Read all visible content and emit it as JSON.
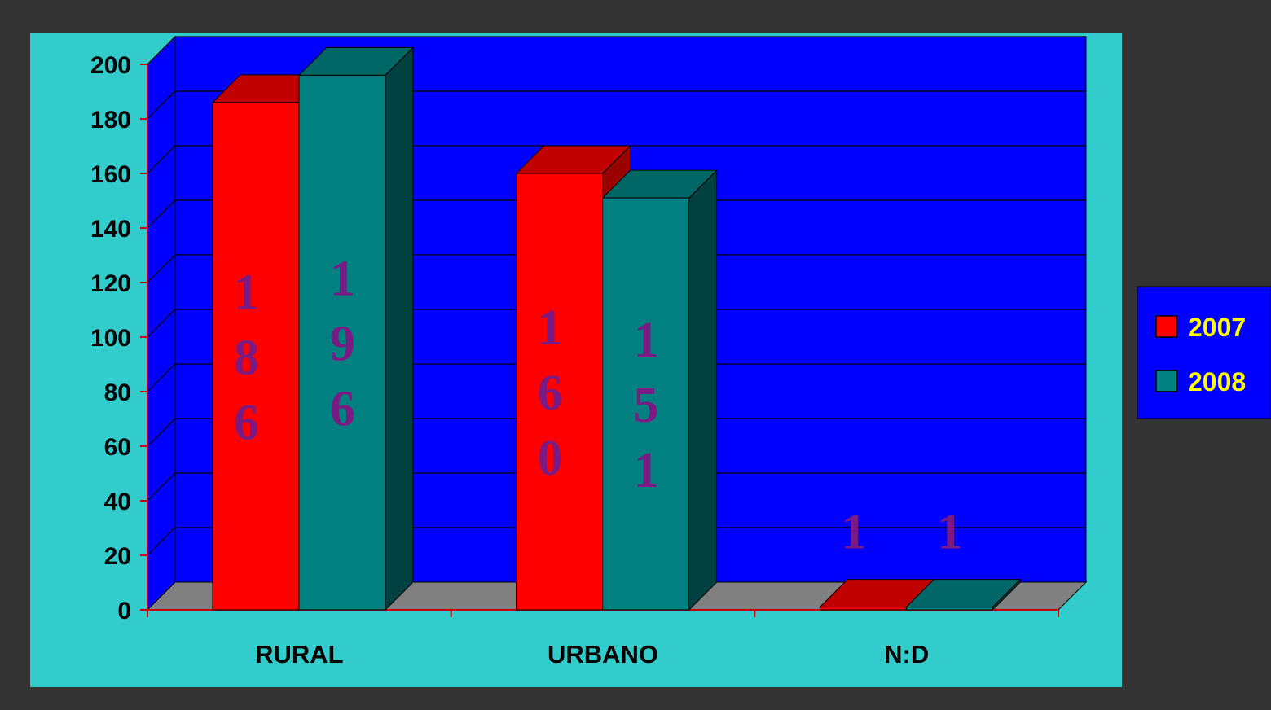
{
  "chart_data": {
    "type": "bar",
    "categories": [
      "RURAL",
      "URBANO",
      "N:D"
    ],
    "series": [
      {
        "name": "2007",
        "values": [
          186,
          160,
          1
        ]
      },
      {
        "name": "2008",
        "values": [
          196,
          151,
          1
        ]
      }
    ],
    "title": "",
    "xlabel": "",
    "ylabel": "",
    "ylim": [
      0,
      200
    ],
    "yticks": [
      "0",
      "20",
      "40",
      "60",
      "80",
      "100",
      "120",
      "140",
      "160",
      "180",
      "200"
    ],
    "grid": true,
    "legend": "right",
    "style_3d": true,
    "colors": {
      "background": "#333333",
      "plot_area": "#33cccc",
      "walls": "#0000ff",
      "floor": "#808080",
      "series": [
        "#ff0000",
        "#008080"
      ],
      "series_top": [
        "#c00000",
        "#006666"
      ],
      "series_side": [
        "#990000",
        "#004040"
      ],
      "data_labels": "#7a1a84",
      "legend_text": "#ffff00",
      "axis_lines": "#cc0000"
    }
  }
}
